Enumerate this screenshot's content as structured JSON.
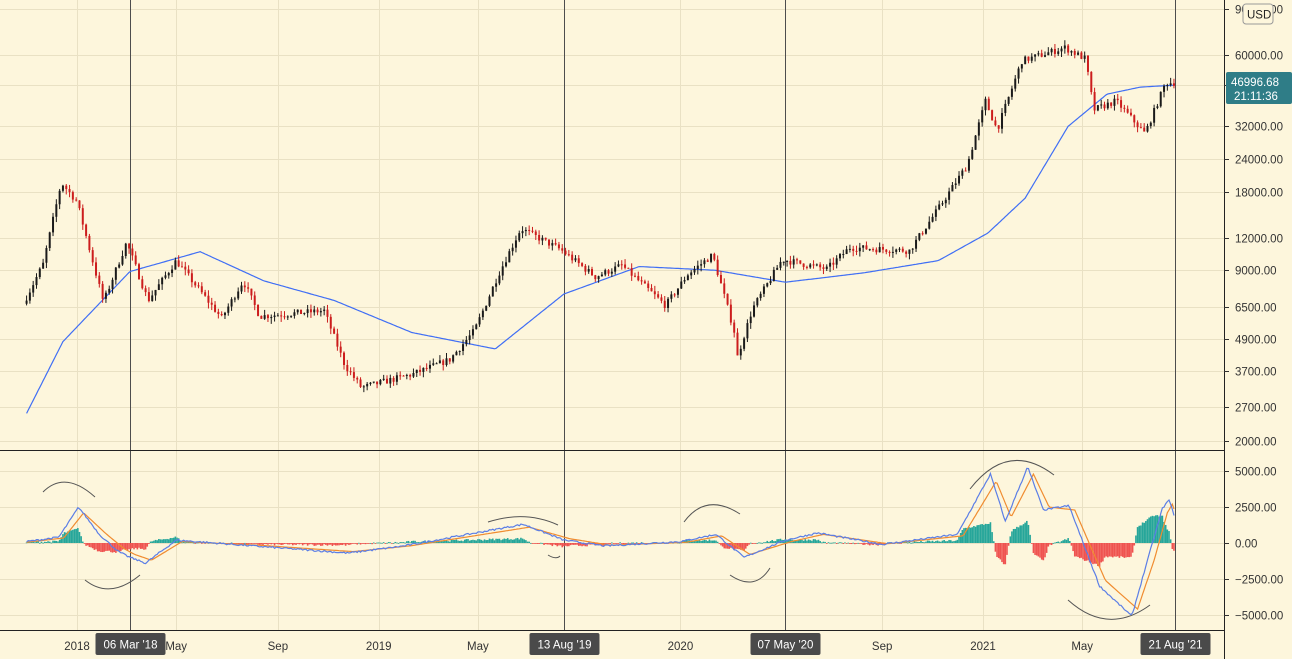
{
  "chart_data": [
    {
      "type": "candlestick",
      "currency": "USD",
      "y_scale": "log",
      "ylim": [
        1800,
        90000
      ],
      "y_ticks": [
        90000,
        60000,
        46000,
        32000,
        24000,
        18000,
        12000,
        9000,
        6500,
        4900,
        3700,
        2700,
        2000
      ],
      "y_tick_labels": [
        "90000.00",
        "60000.00",
        "46000.00",
        "32000.00",
        "24000.00",
        "18000.00",
        "12000.00",
        "9000.00",
        "6500.00",
        "4900.00",
        "3700.00",
        "2700.00",
        "2000.00"
      ],
      "current_price": "46996.68",
      "countdown": "21:11:36",
      "price_path": [
        [
          "2017-11-01",
          6700
        ],
        [
          "2017-11-25",
          9500
        ],
        [
          "2017-12-17",
          19500
        ],
        [
          "2018-01-05",
          16500
        ],
        [
          "2018-02-06",
          6800
        ],
        [
          "2018-03-06",
          11500
        ],
        [
          "2018-04-01",
          6900
        ],
        [
          "2018-05-05",
          9800
        ],
        [
          "2018-06-29",
          5900
        ],
        [
          "2018-07-25",
          8200
        ],
        [
          "2018-08-14",
          6000
        ],
        [
          "2018-10-31",
          6300
        ],
        [
          "2018-11-25",
          3900
        ],
        [
          "2018-12-15",
          3200
        ],
        [
          "2019-02-15",
          3600
        ],
        [
          "2019-04-01",
          4100
        ],
        [
          "2019-05-01",
          5300
        ],
        [
          "2019-05-30",
          8700
        ],
        [
          "2019-06-26",
          13000
        ],
        [
          "2019-08-13",
          10800
        ],
        [
          "2019-09-24",
          8500
        ],
        [
          "2019-10-26",
          9400
        ],
        [
          "2019-12-18",
          6600
        ],
        [
          "2020-01-14",
          8700
        ],
        [
          "2020-02-13",
          10300
        ],
        [
          "2020-03-12",
          5000
        ],
        [
          "2020-03-13",
          4100
        ],
        [
          "2020-04-01",
          6400
        ],
        [
          "2020-05-07",
          9900
        ],
        [
          "2020-06-30",
          9100
        ],
        [
          "2020-07-28",
          11000
        ],
        [
          "2020-10-08",
          10700
        ],
        [
          "2020-11-15",
          16000
        ],
        [
          "2020-12-17",
          22800
        ],
        [
          "2021-01-08",
          40000
        ],
        [
          "2021-01-22",
          31000
        ],
        [
          "2021-02-21",
          57000
        ],
        [
          "2021-04-14",
          64000
        ],
        [
          "2021-05-09",
          58000
        ],
        [
          "2021-05-19",
          37000
        ],
        [
          "2021-06-15",
          40000
        ],
        [
          "2021-07-20",
          30000
        ],
        [
          "2021-08-14",
          47000
        ],
        [
          "2021-08-21",
          46997
        ]
      ],
      "moving_average": [
        [
          "2017-11-01",
          2550
        ],
        [
          "2017-12-15",
          4800
        ],
        [
          "2018-03-06",
          8900
        ],
        [
          "2018-05-30",
          10600
        ],
        [
          "2018-08-15",
          8200
        ],
        [
          "2018-11-08",
          6900
        ],
        [
          "2019-02-10",
          5200
        ],
        [
          "2019-05-22",
          4500
        ],
        [
          "2019-08-13",
          7300
        ],
        [
          "2019-11-12",
          9300
        ],
        [
          "2020-02-12",
          9000
        ],
        [
          "2020-05-07",
          8100
        ],
        [
          "2020-08-10",
          8800
        ],
        [
          "2020-11-08",
          9800
        ],
        [
          "2021-01-07",
          12500
        ],
        [
          "2021-02-21",
          17000
        ],
        [
          "2021-04-14",
          32000
        ],
        [
          "2021-05-31",
          42500
        ],
        [
          "2021-07-10",
          45200
        ],
        [
          "2021-08-21",
          46000
        ]
      ]
    },
    {
      "type": "line",
      "indicator": "oscillator with histogram",
      "ylim": [
        -6000,
        6500
      ],
      "y_ticks": [
        5000,
        2500,
        0,
        -2500,
        -5000
      ],
      "y_tick_labels": [
        "5000.00",
        "2500.00",
        "0.00",
        "−2500.00",
        "−5000.00"
      ],
      "series": [
        {
          "color": "#5b7ee6",
          "points": [
            [
              "2017-11-01",
              100
            ],
            [
              "2017-12-10",
              400
            ],
            [
              "2018-01-03",
              2500
            ],
            [
              "2018-01-28",
              600
            ],
            [
              "2018-02-20",
              -600
            ],
            [
              "2018-03-06",
              -1000
            ],
            [
              "2018-03-25",
              -1400
            ],
            [
              "2018-05-01",
              200
            ],
            [
              "2018-08-01",
              -200
            ],
            [
              "2018-11-25",
              -700
            ],
            [
              "2019-02-01",
              -200
            ],
            [
              "2019-06-25",
              1300
            ],
            [
              "2019-08-13",
              200
            ],
            [
              "2019-10-01",
              -200
            ],
            [
              "2020-01-01",
              100
            ],
            [
              "2020-02-13",
              600
            ],
            [
              "2020-03-18",
              -1000
            ],
            [
              "2020-05-07",
              200
            ],
            [
              "2020-06-15",
              700
            ],
            [
              "2020-09-01",
              -100
            ],
            [
              "2020-12-01",
              600
            ],
            [
              "2021-01-10",
              4800
            ],
            [
              "2021-01-28",
              1500
            ],
            [
              "2021-02-24",
              5300
            ],
            [
              "2021-03-15",
              2300
            ],
            [
              "2021-04-15",
              2600
            ],
            [
              "2021-05-22",
              -3000
            ],
            [
              "2021-06-30",
              -5100
            ],
            [
              "2021-07-20",
              -1000
            ],
            [
              "2021-08-06",
              2400
            ],
            [
              "2021-08-14",
              3000
            ],
            [
              "2021-08-21",
              1800
            ]
          ]
        },
        {
          "color": "#f08c30",
          "points": [
            [
              "2017-11-01",
              50
            ],
            [
              "2017-12-16",
              350
            ],
            [
              "2018-01-09",
              2100
            ],
            [
              "2018-02-04",
              700
            ],
            [
              "2018-02-27",
              -400
            ],
            [
              "2018-03-12",
              -800
            ],
            [
              "2018-04-01",
              -1200
            ],
            [
              "2018-05-08",
              100
            ],
            [
              "2018-08-08",
              -150
            ],
            [
              "2018-12-01",
              -600
            ],
            [
              "2019-02-08",
              -200
            ],
            [
              "2019-07-02",
              1100
            ],
            [
              "2019-08-20",
              300
            ],
            [
              "2019-10-08",
              -150
            ],
            [
              "2020-01-08",
              50
            ],
            [
              "2020-02-20",
              500
            ],
            [
              "2020-03-25",
              -800
            ],
            [
              "2020-05-14",
              100
            ],
            [
              "2020-06-22",
              600
            ],
            [
              "2020-09-08",
              -50
            ],
            [
              "2020-12-08",
              500
            ],
            [
              "2021-01-17",
              4300
            ],
            [
              "2021-02-04",
              1800
            ],
            [
              "2021-03-03",
              4800
            ],
            [
              "2021-03-22",
              2500
            ],
            [
              "2021-04-22",
              2300
            ],
            [
              "2021-05-29",
              -2600
            ],
            [
              "2021-07-07",
              -4600
            ],
            [
              "2021-07-27",
              -1200
            ],
            [
              "2021-08-12",
              2100
            ],
            [
              "2021-08-18",
              2700
            ],
            [
              "2021-08-21",
              2200
            ]
          ]
        }
      ],
      "histogram_colors": {
        "positive": "#26a69a",
        "negative": "#ef5350"
      }
    }
  ],
  "x_axis": {
    "ticks": [
      {
        "date": "2018-01-01",
        "label": "2018"
      },
      {
        "date": "2018-05-01",
        "label": "May"
      },
      {
        "date": "2018-09-01",
        "label": "Sep"
      },
      {
        "date": "2019-01-01",
        "label": "2019"
      },
      {
        "date": "2019-05-01",
        "label": "May"
      },
      {
        "date": "2020-01-01",
        "label": "2020"
      },
      {
        "date": "2020-09-01",
        "label": "Sep"
      },
      {
        "date": "2021-01-01",
        "label": "2021"
      },
      {
        "date": "2021-05-01",
        "label": "May"
      }
    ]
  },
  "vertical_markers": [
    {
      "date": "2018-03-06",
      "label": "06 Mar '18"
    },
    {
      "date": "2019-08-13",
      "label": "13 Aug '19"
    },
    {
      "date": "2020-05-07",
      "label": "07 May '20"
    },
    {
      "date": "2021-08-21",
      "label": "21 Aug '21"
    }
  ],
  "colors": {
    "background": "#fdf6dc",
    "candle_up": "#1a1a1a",
    "candle_down": "#cc1d1d",
    "moving_average": "#3f6ef5",
    "price_tag": "#2f7d87",
    "marker_label": "#4a4a4a",
    "arc": "#555555"
  }
}
